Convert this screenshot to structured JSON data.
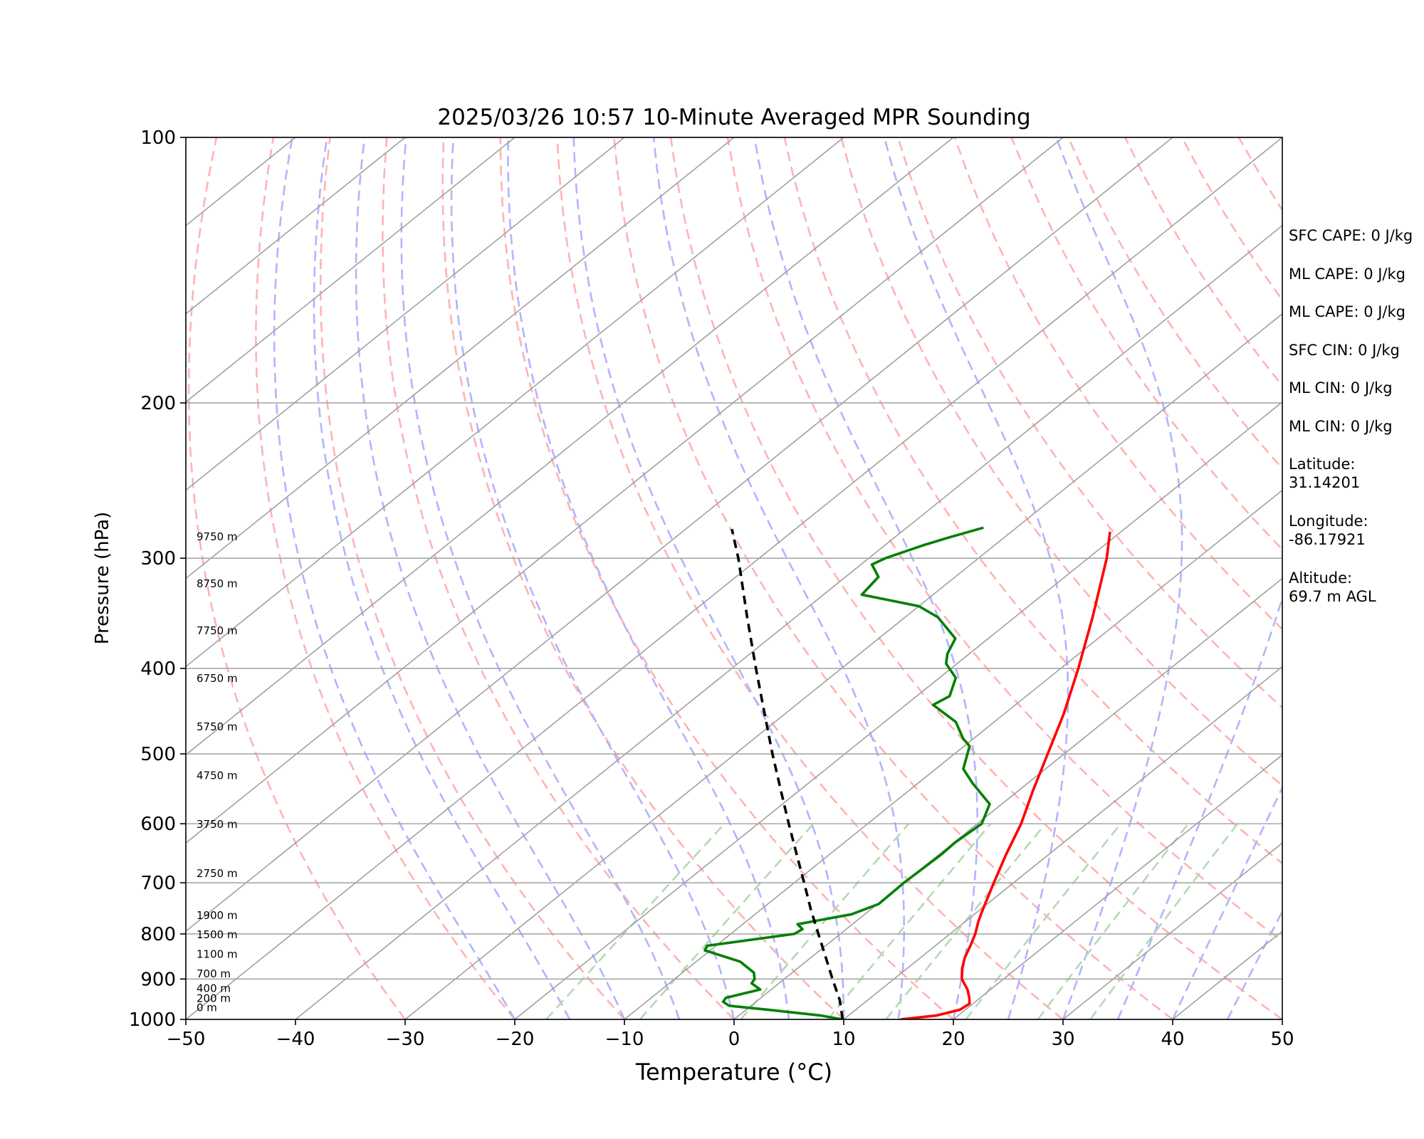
{
  "chart_data": {
    "type": "skewt",
    "title": "2025/03/26 10:57 10-Minute Averaged MPR Sounding",
    "xlabel": "Temperature (°C)",
    "ylabel": "Pressure (hPa)",
    "xlim": [
      -50,
      50
    ],
    "ylim": [
      1000,
      100
    ],
    "y_scale": "log",
    "x_ticks": [
      "−50",
      "−40",
      "−30",
      "−20",
      "−10",
      "0",
      "10",
      "20",
      "30",
      "40",
      "50"
    ],
    "x_tick_values": [
      -50,
      -40,
      -30,
      -20,
      -10,
      0,
      10,
      20,
      30,
      40,
      50
    ],
    "y_ticks": [
      "100",
      "200",
      "300",
      "400",
      "500",
      "600",
      "700",
      "800",
      "900",
      "1000"
    ],
    "y_tick_values": [
      100,
      200,
      300,
      400,
      500,
      600,
      700,
      800,
      900,
      1000
    ],
    "grid": true,
    "colors": {
      "temperature": "#ff0000",
      "dewpoint": "#008000",
      "parcel": "#000000",
      "dry_adiabat": "#ffb3b3",
      "moist_adiabat": "#b3b3ff",
      "mixing_ratio": "#b3dab3",
      "isotherm": "#a0a0a0",
      "grid": "#a8a8a8"
    },
    "series": [
      {
        "key": "temperature",
        "points": [
          [
            1000,
            15.2
          ],
          [
            990,
            18.0
          ],
          [
            975,
            19.5
          ],
          [
            960,
            19.7
          ],
          [
            945,
            19.0
          ],
          [
            925,
            17.9
          ],
          [
            900,
            16.2
          ],
          [
            875,
            15.0
          ],
          [
            850,
            14.0
          ],
          [
            825,
            13.2
          ],
          [
            800,
            12.3
          ],
          [
            775,
            11.2
          ],
          [
            750,
            10.2
          ],
          [
            700,
            8.2
          ],
          [
            650,
            6.1
          ],
          [
            600,
            4.0
          ],
          [
            550,
            1.3
          ],
          [
            500,
            -1.5
          ],
          [
            450,
            -4.6
          ],
          [
            400,
            -8.4
          ],
          [
            350,
            -12.9
          ],
          [
            300,
            -18.3
          ],
          [
            280,
            -21.0
          ]
        ]
      },
      {
        "key": "dewpoint",
        "points": [
          [
            1000,
            9.9
          ],
          [
            990,
            7.5
          ],
          [
            975,
            2.0
          ],
          [
            965,
            -2.0
          ],
          [
            955,
            -3.0
          ],
          [
            945,
            -3.2
          ],
          [
            925,
            -1.0
          ],
          [
            910,
            -2.5
          ],
          [
            900,
            -2.7
          ],
          [
            885,
            -3.5
          ],
          [
            860,
            -6.0
          ],
          [
            835,
            -10.5
          ],
          [
            825,
            -10.8
          ],
          [
            800,
            -4.2
          ],
          [
            790,
            -4.0
          ],
          [
            780,
            -5.0
          ],
          [
            760,
            -1.2
          ],
          [
            740,
            0.1
          ],
          [
            700,
            0.0
          ],
          [
            650,
            0.2
          ],
          [
            630,
            0.1
          ],
          [
            600,
            0.4
          ],
          [
            570,
            -1.1
          ],
          [
            540,
            -5.0
          ],
          [
            520,
            -7.5
          ],
          [
            490,
            -9.5
          ],
          [
            480,
            -11.0
          ],
          [
            460,
            -13.5
          ],
          [
            440,
            -17.5
          ],
          [
            430,
            -17.0
          ],
          [
            410,
            -18.5
          ],
          [
            395,
            -21.0
          ],
          [
            385,
            -22.0
          ],
          [
            370,
            -23.0
          ],
          [
            350,
            -27.0
          ],
          [
            340,
            -30.0
          ],
          [
            330,
            -36.5
          ],
          [
            315,
            -37.0
          ],
          [
            305,
            -39.0
          ],
          [
            300,
            -38.5
          ],
          [
            295,
            -37.5
          ],
          [
            290,
            -36.5
          ],
          [
            284,
            -35.0
          ],
          [
            277,
            -33.0
          ]
        ]
      },
      {
        "key": "parcel",
        "points": [
          [
            1000,
            9.9
          ],
          [
            950,
            7.4
          ],
          [
            900,
            4.4
          ],
          [
            850,
            1.3
          ],
          [
            800,
            -2.0
          ],
          [
            750,
            -5.5
          ],
          [
            700,
            -9.1
          ],
          [
            650,
            -13.0
          ],
          [
            600,
            -17.2
          ],
          [
            550,
            -21.7
          ],
          [
            500,
            -26.6
          ],
          [
            450,
            -31.9
          ],
          [
            400,
            -37.8
          ],
          [
            350,
            -44.4
          ],
          [
            300,
            -51.9
          ],
          [
            278,
            -55.8
          ]
        ]
      }
    ],
    "height_labels": [
      {
        "label": "9750 m",
        "p": 283
      },
      {
        "label": "8750 m",
        "p": 320
      },
      {
        "label": "7750 m",
        "p": 362
      },
      {
        "label": "6750 m",
        "p": 410
      },
      {
        "label": "5750 m",
        "p": 465
      },
      {
        "label": "4750 m",
        "p": 528
      },
      {
        "label": "3750 m",
        "p": 600
      },
      {
        "label": "2750 m",
        "p": 682
      },
      {
        "label": "1900 m",
        "p": 761
      },
      {
        "label": "1500 m",
        "p": 800
      },
      {
        "label": "1100 m",
        "p": 842
      },
      {
        "label": "700 m",
        "p": 886
      },
      {
        "label": "400 m",
        "p": 921
      },
      {
        "label": "200 m",
        "p": 945
      },
      {
        "label": "0 m",
        "p": 968
      }
    ]
  },
  "side_panel": {
    "items": [
      "SFC CAPE: 0 J/kg",
      "ML CAPE: 0 J/kg",
      "ML CAPE: 0 J/kg",
      "SFC CIN: 0 J/kg",
      "ML CIN: 0 J/kg",
      "ML CIN: 0 J/kg",
      "Latitude:\n31.14201",
      "Longitude:\n-86.17921",
      "Altitude:\n69.7 m AGL"
    ]
  }
}
